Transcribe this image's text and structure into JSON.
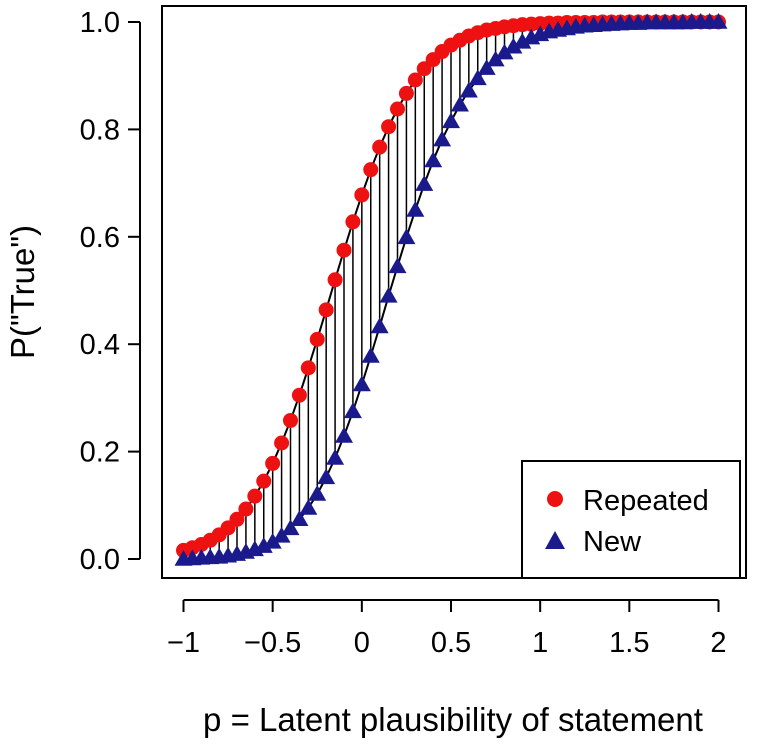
{
  "chart_data": {
    "type": "scatter",
    "xlabel": "p = Latent plausibility of statement",
    "ylabel": "P(\"True\")",
    "xlim": [
      -1.05,
      2.05
    ],
    "ylim": [
      0.0,
      1.0
    ],
    "x_ticks": [
      -1,
      -0.5,
      0,
      0.5,
      1,
      1.5,
      2
    ],
    "x_tick_labels": [
      "−1",
      "−0.5",
      "0",
      "0.5",
      "1",
      "1.5",
      "2"
    ],
    "y_ticks": [
      0.0,
      0.2,
      0.4,
      0.6,
      0.8,
      1.0
    ],
    "y_tick_labels": [
      "0.0",
      "0.2",
      "0.4",
      "0.6",
      "0.8",
      "1.0"
    ],
    "grid": false,
    "legend_position": "bottom-right",
    "connectors": "vertical segments between Repeated and New at each x",
    "x": [
      -1.0,
      -0.95,
      -0.9,
      -0.85,
      -0.8,
      -0.75,
      -0.7,
      -0.65,
      -0.6,
      -0.55,
      -0.5,
      -0.45,
      -0.4,
      -0.35,
      -0.3,
      -0.25,
      -0.2,
      -0.15,
      -0.1,
      -0.05,
      0.0,
      0.05,
      0.1,
      0.15,
      0.2,
      0.25,
      0.3,
      0.35,
      0.4,
      0.45,
      0.5,
      0.55,
      0.6,
      0.65,
      0.7,
      0.75,
      0.8,
      0.85,
      0.9,
      0.95,
      1.0,
      1.05,
      1.1,
      1.15,
      1.2,
      1.25,
      1.3,
      1.35,
      1.4,
      1.45,
      1.5,
      1.55,
      1.6,
      1.65,
      1.7,
      1.75,
      1.8,
      1.85,
      1.9,
      1.95,
      2.0
    ],
    "series": [
      {
        "name": "Repeated",
        "color": "#ee1111",
        "marker": "circle",
        "values": [
          0.016,
          0.021,
          0.027,
          0.035,
          0.045,
          0.058,
          0.074,
          0.093,
          0.117,
          0.145,
          0.178,
          0.216,
          0.258,
          0.305,
          0.356,
          0.409,
          0.464,
          0.52,
          0.575,
          0.628,
          0.678,
          0.725,
          0.767,
          0.805,
          0.838,
          0.867,
          0.892,
          0.913,
          0.93,
          0.945,
          0.957,
          0.966,
          0.974,
          0.98,
          0.985,
          0.988,
          0.991,
          0.993,
          0.995,
          0.996,
          0.997,
          0.998,
          0.998,
          0.999,
          0.999,
          0.999,
          0.999,
          1.0,
          1.0,
          1.0,
          1.0,
          1.0,
          1.0,
          1.0,
          1.0,
          1.0,
          1.0,
          1.0,
          1.0,
          1.0,
          1.0
        ]
      },
      {
        "name": "New",
        "color": "#1a1a8c",
        "marker": "triangle",
        "values": [
          0.0,
          0.001,
          0.002,
          0.003,
          0.004,
          0.006,
          0.009,
          0.013,
          0.018,
          0.024,
          0.032,
          0.043,
          0.057,
          0.074,
          0.095,
          0.121,
          0.152,
          0.188,
          0.229,
          0.275,
          0.325,
          0.378,
          0.433,
          0.49,
          0.545,
          0.599,
          0.65,
          0.698,
          0.742,
          0.781,
          0.815,
          0.846,
          0.872,
          0.895,
          0.914,
          0.93,
          0.943,
          0.954,
          0.963,
          0.971,
          0.977,
          0.982,
          0.985,
          0.988,
          0.991,
          0.993,
          0.994,
          0.995,
          0.996,
          0.997,
          0.998,
          0.998,
          0.999,
          0.999,
          0.999,
          0.999,
          0.999,
          1.0,
          1.0,
          1.0,
          1.0
        ]
      }
    ]
  }
}
